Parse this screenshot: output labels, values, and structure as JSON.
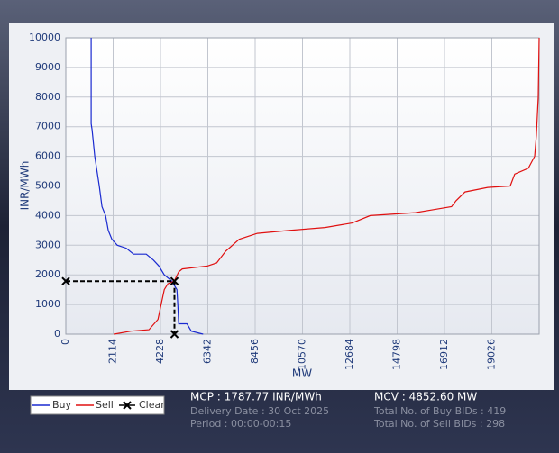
{
  "chart_data": {
    "type": "line",
    "x_label": "MW",
    "y_label": "INR/MWh",
    "xlim": [
      0,
      21140
    ],
    "ylim": [
      0,
      10000
    ],
    "xticks": [
      0,
      2114,
      4228,
      6342,
      8456,
      10570,
      12684,
      14798,
      16912,
      19026
    ],
    "yticks": [
      0,
      1000,
      2000,
      3000,
      4000,
      5000,
      6000,
      7000,
      8000,
      9000,
      10000
    ],
    "grid": true,
    "legend": "bottom-left",
    "series": [
      {
        "name": "Buy",
        "color": "#1a2ad0",
        "x": [
          1130,
          1130,
          1170,
          1291,
          1493,
          1614,
          1775,
          1896,
          2057,
          2299,
          2703,
          3026,
          3590,
          3913,
          4155,
          4397,
          4720,
          4962,
          5002,
          5043,
          5406,
          5607,
          6132
        ],
        "values": [
          10000,
          7100,
          6900,
          6000,
          5000,
          4300,
          4000,
          3500,
          3200,
          3000,
          2900,
          2700,
          2700,
          2500,
          2300,
          2000,
          1800,
          1500,
          1000,
          350,
          350,
          100,
          0
        ]
      },
      {
        "name": "Sell",
        "color": "#e01010",
        "x": [
          2138,
          2905,
          3711,
          4115,
          4397,
          4560,
          4841,
          5043,
          5204,
          6333,
          6737,
          7140,
          7745,
          8552,
          9964,
          11578,
          12788,
          13595,
          15612,
          16418,
          17225,
          17427,
          17830,
          18839,
          19848,
          20050,
          20655,
          20937,
          21017,
          21098,
          21140
        ],
        "values": [
          0,
          100,
          150,
          500,
          1500,
          1700,
          1787,
          2100,
          2200,
          2300,
          2400,
          2800,
          3200,
          3400,
          3500,
          3600,
          3750,
          4000,
          4100,
          4200,
          4300,
          4500,
          4800,
          4950,
          5000,
          5400,
          5600,
          6000,
          6700,
          8000,
          10000
        ]
      },
      {
        "name": "Clear",
        "color": "#000000",
        "x": [
          0,
          4852.6,
          4852.6
        ],
        "values": [
          1787.77,
          1787.77,
          0
        ]
      }
    ],
    "annotations": [
      "MCP : 1787.77 INR/MWh",
      "Delivery Date : 30 Oct 2025",
      "Period :  00:00-00:15",
      "MCV : 4852.60 MW",
      "Total No. of Buy BIDs : 419",
      "Total No. of Sell BIDs : 298"
    ]
  }
}
